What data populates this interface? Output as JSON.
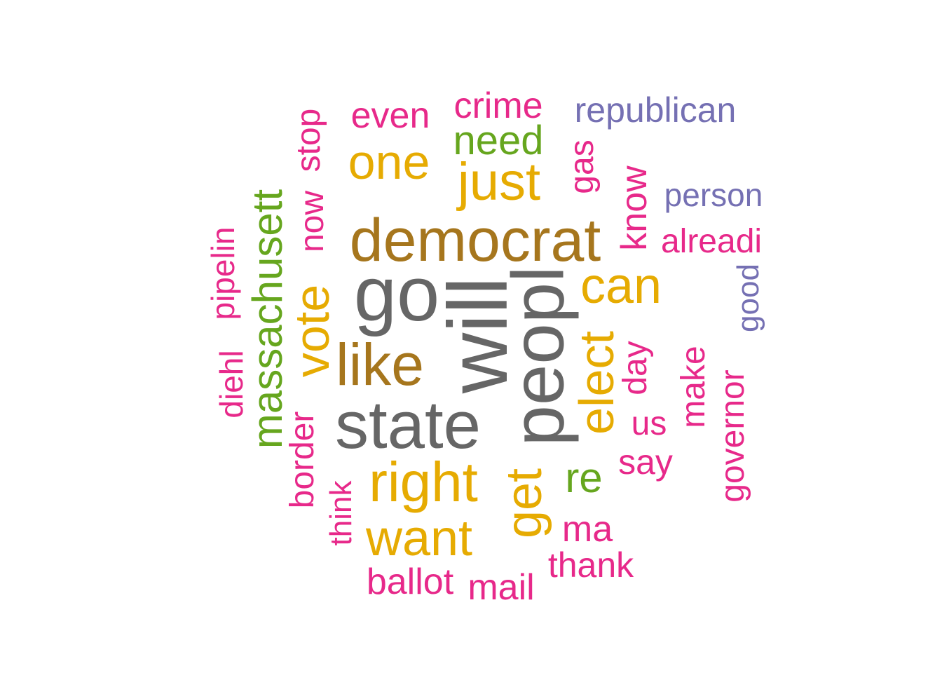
{
  "colors": {
    "gray": "#666666",
    "olive": "#A6761D",
    "gold": "#E6AB02",
    "green": "#66A61E",
    "magenta": "#E7298A",
    "purple": "#7570B3"
  },
  "words": [
    {
      "text": "will",
      "color": "gray"
    },
    {
      "text": "peopl",
      "color": "gray"
    },
    {
      "text": "go",
      "color": "gray"
    },
    {
      "text": "state",
      "color": "gray"
    },
    {
      "text": "democrat",
      "color": "olive"
    },
    {
      "text": "like",
      "color": "olive"
    },
    {
      "text": "right",
      "color": "gold"
    },
    {
      "text": "elect",
      "color": "gold"
    },
    {
      "text": "can",
      "color": "gold"
    },
    {
      "text": "vote",
      "color": "gold"
    },
    {
      "text": "just",
      "color": "gold"
    },
    {
      "text": "one",
      "color": "gold"
    },
    {
      "text": "want",
      "color": "gold"
    },
    {
      "text": "get",
      "color": "gold"
    },
    {
      "text": "massachusett",
      "color": "green"
    },
    {
      "text": "need",
      "color": "green"
    },
    {
      "text": "re",
      "color": "green"
    },
    {
      "text": "crime",
      "color": "magenta"
    },
    {
      "text": "even",
      "color": "magenta"
    },
    {
      "text": "stop",
      "color": "magenta"
    },
    {
      "text": "now",
      "color": "magenta"
    },
    {
      "text": "gas",
      "color": "magenta"
    },
    {
      "text": "know",
      "color": "magenta"
    },
    {
      "text": "alreadi",
      "color": "magenta"
    },
    {
      "text": "pipelin",
      "color": "magenta"
    },
    {
      "text": "diehl",
      "color": "magenta"
    },
    {
      "text": "border",
      "color": "magenta"
    },
    {
      "text": "think",
      "color": "magenta"
    },
    {
      "text": "day",
      "color": "magenta"
    },
    {
      "text": "us",
      "color": "magenta"
    },
    {
      "text": "make",
      "color": "magenta"
    },
    {
      "text": "say",
      "color": "magenta"
    },
    {
      "text": "governor",
      "color": "magenta"
    },
    {
      "text": "ma",
      "color": "magenta"
    },
    {
      "text": "thank",
      "color": "magenta"
    },
    {
      "text": "ballot",
      "color": "magenta"
    },
    {
      "text": "mail",
      "color": "magenta"
    },
    {
      "text": "republican",
      "color": "purple"
    },
    {
      "text": "person",
      "color": "purple"
    },
    {
      "text": "good",
      "color": "purple"
    }
  ]
}
